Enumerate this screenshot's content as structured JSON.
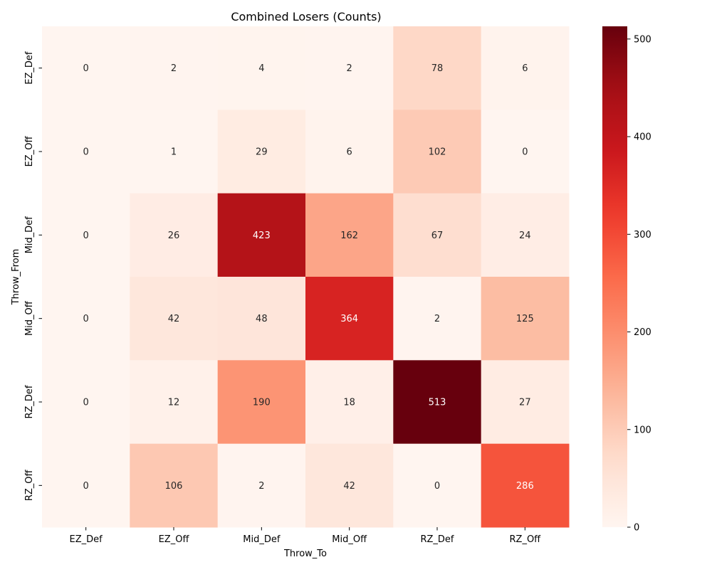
{
  "chart_data": {
    "type": "heatmap",
    "title": "Combined Losers (Counts)",
    "xlabel": "Throw_To",
    "ylabel": "Throw_From",
    "x_categories": [
      "EZ_Def",
      "EZ_Off",
      "Mid_Def",
      "Mid_Off",
      "RZ_Def",
      "RZ_Off"
    ],
    "y_categories": [
      "EZ_Def",
      "EZ_Off",
      "Mid_Def",
      "Mid_Off",
      "RZ_Def",
      "RZ_Off"
    ],
    "values": [
      [
        0,
        2,
        4,
        2,
        78,
        6
      ],
      [
        0,
        1,
        29,
        6,
        102,
        0
      ],
      [
        0,
        26,
        423,
        162,
        67,
        24
      ],
      [
        0,
        42,
        48,
        364,
        2,
        125
      ],
      [
        0,
        12,
        190,
        18,
        513,
        27
      ],
      [
        0,
        106,
        2,
        42,
        0,
        286
      ]
    ],
    "colormap": "Reds",
    "color_range": [
      0,
      513
    ],
    "colorbar_ticks": [
      0,
      100,
      200,
      300,
      400,
      500
    ],
    "annotations": true
  }
}
